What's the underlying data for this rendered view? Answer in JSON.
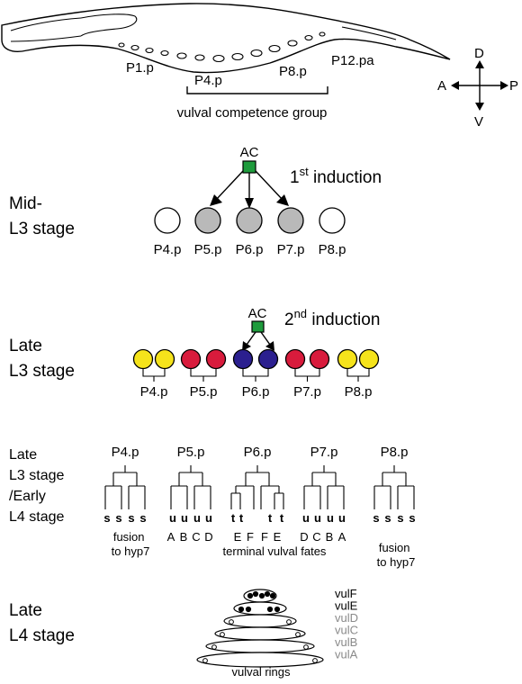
{
  "worm": {
    "labels": [
      "P1.p",
      "P4.p",
      "P8.p",
      "P12.pa"
    ],
    "group_label": "vulval competence group"
  },
  "axes": {
    "dorsal": "D",
    "ventral": "V",
    "anterior": "A",
    "posterior": "P"
  },
  "mid_l3": {
    "stage_lines": [
      "Mid-",
      "L3 stage"
    ],
    "ac_label": "AC",
    "induction_ordinal": "1",
    "induction_sup": "st",
    "induction_text": " induction",
    "cells": [
      "P4.p",
      "P5.p",
      "P6.p",
      "P7.p",
      "P8.p"
    ],
    "induced": [
      false,
      true,
      true,
      true,
      false
    ],
    "colors": {
      "uninduced": "#ffffff",
      "induced": "#b9b9b9",
      "ac": "#1e9b3c"
    }
  },
  "late_l3": {
    "stage_lines": [
      "Late",
      "L3 stage"
    ],
    "ac_label": "AC",
    "induction_ordinal": "2",
    "induction_sup": "nd",
    "induction_text": " induction",
    "cells": [
      "P4.p",
      "P5.p",
      "P6.p",
      "P7.p",
      "P8.p"
    ],
    "colors": [
      "#f5e31b",
      "#d81b3c",
      "#2b1f8f",
      "#d81b3c",
      "#f5e31b"
    ]
  },
  "early_l4": {
    "stage_lines": [
      "Late",
      "L3 stage",
      "/Early",
      "L4 stage"
    ],
    "lineages": [
      {
        "label": "P4.p",
        "fates": [
          "s",
          "s",
          "s",
          "s"
        ],
        "letters": []
      },
      {
        "label": "P5.p",
        "fates": [
          "u",
          "u",
          "u",
          "u"
        ],
        "letters": [
          "A",
          "B",
          "C",
          "D"
        ]
      },
      {
        "label": "P6.p",
        "fates": [
          "t",
          "t",
          "t",
          "t"
        ],
        "letters": [
          "E",
          "F",
          "F",
          "E"
        ]
      },
      {
        "label": "P7.p",
        "fates": [
          "u",
          "u",
          "u",
          "u"
        ],
        "letters": [
          "D",
          "C",
          "B",
          "A"
        ]
      },
      {
        "label": "P8.p",
        "fates": [
          "s",
          "s",
          "s",
          "s"
        ],
        "letters": []
      }
    ],
    "fusion_left": [
      "fusion",
      "to hyp7"
    ],
    "fusion_right": [
      "fusion",
      "to hyp7"
    ],
    "terminal_label": "terminal vulval fates"
  },
  "late_l4": {
    "stage_lines": [
      "Late",
      "L4 stage"
    ],
    "rings": [
      "vulF",
      "vulE",
      "vulD",
      "vulC",
      "vulB",
      "vulA"
    ],
    "ring_colors": [
      "#000000",
      "#000000",
      "#8a8a8a",
      "#8a8a8a",
      "#8a8a8a",
      "#8a8a8a"
    ],
    "rings_label": "vulval rings"
  }
}
